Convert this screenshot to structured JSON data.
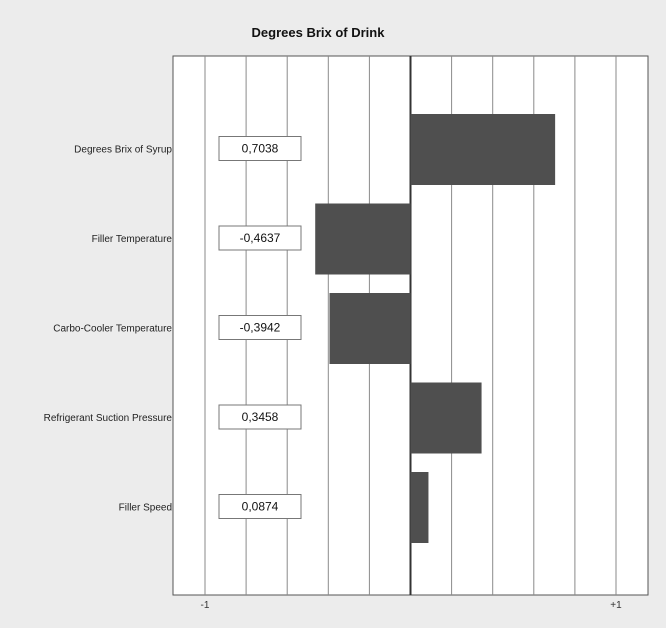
{
  "chart_data": {
    "type": "bar",
    "orientation": "horizontal",
    "title": "Degrees Brix of Drink",
    "categories": [
      "Degrees Brix of Syrup",
      "Filler Temperature",
      "Carbo-Cooler Temperature",
      "Refrigerant Suction Pressure",
      "Filler Speed"
    ],
    "values": [
      0.7038,
      -0.4637,
      -0.3942,
      0.3458,
      0.0874
    ],
    "value_labels": [
      "0,7038",
      "-0,4637",
      "-0,3942",
      "0,3458",
      "0,0874"
    ],
    "xlim": [
      -1,
      1
    ],
    "x_tick_labels": [
      "-1",
      "+1"
    ],
    "grid": true,
    "bar_color": "#4f4f4f"
  }
}
